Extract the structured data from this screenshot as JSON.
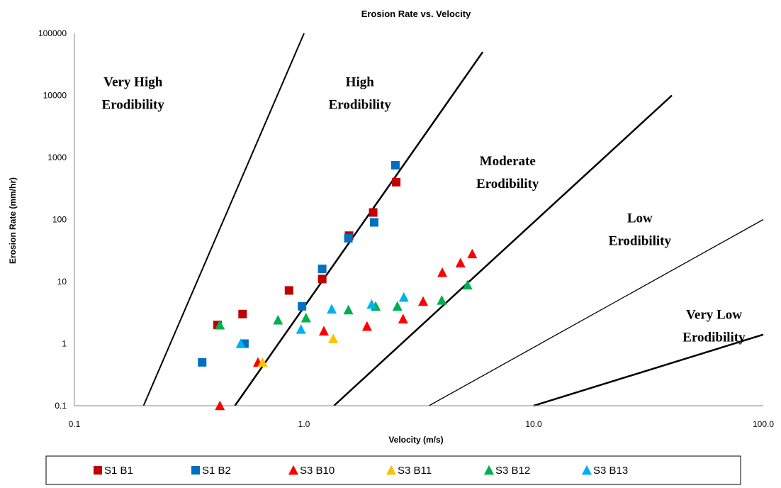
{
  "chart_data": {
    "type": "scatter",
    "title": "Erosion Rate vs. Velocity",
    "xlabel": "Velocity (m/s)",
    "ylabel": "Erosion Rate (mm/hr)",
    "xscale": "log",
    "yscale": "log",
    "xlim": [
      0.1,
      100
    ],
    "ylim": [
      0.1,
      100000
    ],
    "x_ticks": [
      "0.1",
      "1.0",
      "10.0",
      "100.0"
    ],
    "y_ticks": [
      "0.1",
      "1",
      "10",
      "100",
      "1000",
      "10000",
      "100000"
    ],
    "grid": false,
    "legend_position": "bottom",
    "boundary_lines": [
      {
        "from": [
          0.2,
          0.1
        ],
        "to": [
          1.0,
          100000
        ],
        "width": 2
      },
      {
        "from": [
          0.5,
          0.1
        ],
        "to": [
          6.0,
          50000
        ],
        "width": 2.5
      },
      {
        "from": [
          1.35,
          0.1
        ],
        "to": [
          40.0,
          10000
        ],
        "width": 2.5
      },
      {
        "from": [
          3.5,
          0.1
        ],
        "to": [
          100.0,
          100
        ],
        "width": 1.3
      },
      {
        "from": [
          10.0,
          0.1
        ],
        "to": [
          100.0,
          1.4
        ],
        "width": 2.5
      }
    ],
    "zone_labels": [
      {
        "lines": [
          "Very High",
          "Erodibility"
        ],
        "x": 0.18,
        "y": 14000
      },
      {
        "lines": [
          "High",
          "Erodibility"
        ],
        "x": 1.75,
        "y": 14000
      },
      {
        "lines": [
          "Moderate",
          "Erodibility"
        ],
        "x": 7.7,
        "y": 750
      },
      {
        "lines": [
          "Low",
          "Erodibility"
        ],
        "x": 29,
        "y": 90
      },
      {
        "lines": [
          "Very Low",
          "Erodibility"
        ],
        "x": 61,
        "y": 2.5
      }
    ],
    "series": [
      {
        "name": "S1 B1",
        "marker": "square",
        "color": "#c00000",
        "points": [
          [
            0.42,
            2.0
          ],
          [
            0.54,
            3.0
          ],
          [
            0.86,
            7.2
          ],
          [
            1.2,
            11
          ],
          [
            1.57,
            55
          ],
          [
            2.0,
            130
          ],
          [
            2.52,
            400
          ]
        ]
      },
      {
        "name": "S1 B2",
        "marker": "square",
        "color": "#0070c0",
        "points": [
          [
            0.36,
            0.5
          ],
          [
            0.55,
            1.0
          ],
          [
            0.98,
            4.0
          ],
          [
            1.2,
            16
          ],
          [
            1.56,
            50
          ],
          [
            2.02,
            90
          ],
          [
            2.5,
            750
          ]
        ]
      },
      {
        "name": "S3 B10",
        "marker": "triangle",
        "color": "#ff0000",
        "points": [
          [
            0.43,
            0.1
          ],
          [
            0.63,
            0.5
          ],
          [
            1.22,
            1.6
          ],
          [
            1.88,
            1.9
          ],
          [
            2.7,
            2.5
          ],
          [
            3.3,
            4.8
          ],
          [
            4.0,
            14
          ],
          [
            4.8,
            20
          ],
          [
            5.4,
            28
          ]
        ]
      },
      {
        "name": "S3 B11",
        "marker": "triangle",
        "color": "#ffc000",
        "points": [
          [
            0.66,
            0.5
          ],
          [
            1.34,
            1.2
          ]
        ]
      },
      {
        "name": "S3 B12",
        "marker": "triangle",
        "color": "#00b050",
        "points": [
          [
            0.43,
            2.0
          ],
          [
            0.77,
            2.4
          ],
          [
            1.02,
            2.6
          ],
          [
            1.56,
            3.5
          ],
          [
            2.05,
            4.0
          ],
          [
            2.55,
            4.0
          ],
          [
            3.98,
            5.0
          ],
          [
            5.15,
            8.8
          ]
        ]
      },
      {
        "name": "S3 B13",
        "marker": "triangle",
        "color": "#00b0f0",
        "points": [
          [
            0.53,
            1.0
          ],
          [
            0.97,
            1.7
          ],
          [
            1.32,
            3.6
          ],
          [
            1.97,
            4.3
          ],
          [
            2.72,
            5.6
          ]
        ]
      }
    ]
  }
}
